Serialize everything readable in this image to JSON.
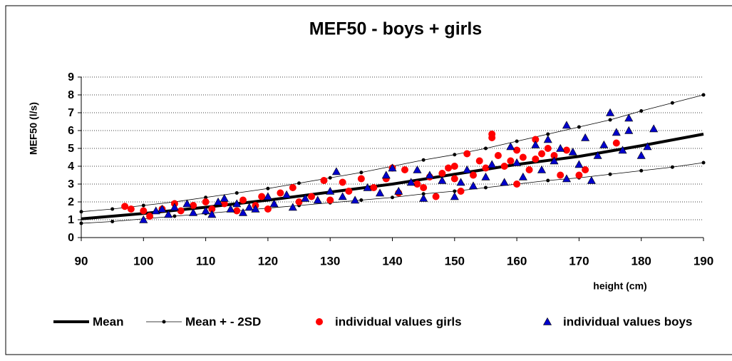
{
  "chart_data": {
    "type": "scatter",
    "title": "MEF50 -  boys + girls",
    "x_label": "height (cm)",
    "y_label": "MEF50 (l/s)",
    "xlim": [
      90,
      190
    ],
    "xticks": [
      90,
      100,
      110,
      120,
      130,
      140,
      150,
      160,
      170,
      180,
      190
    ],
    "ylim": [
      0,
      9
    ],
    "yticks": [
      0,
      1,
      2,
      3,
      4,
      5,
      6,
      7,
      8,
      9
    ],
    "grid": true,
    "series": [
      {
        "name": "Mean",
        "color": "#000000",
        "marker": "line",
        "x": [
          90,
          100,
          110,
          120,
          130,
          140,
          150,
          160,
          170,
          180,
          190
        ],
        "values": [
          1.05,
          1.35,
          1.7,
          2.1,
          2.55,
          3.0,
          3.55,
          4.1,
          4.55,
          5.15,
          5.8
        ]
      },
      {
        "name": "Mean + - 2SD",
        "color": "#000000",
        "marker": "line-dot",
        "x": [
          90,
          95,
          100,
          105,
          110,
          115,
          120,
          125,
          130,
          135,
          140,
          145,
          150,
          155,
          160,
          165,
          170,
          175,
          180,
          185,
          190
        ],
        "values": [
          1.45,
          1.6,
          1.8,
          2.0,
          2.25,
          2.5,
          2.75,
          3.05,
          3.35,
          3.65,
          4.0,
          4.35,
          4.65,
          5.0,
          5.4,
          5.8,
          6.2,
          6.6,
          7.1,
          7.55,
          8.0
        ],
        "lower": [
          0.8,
          0.9,
          1.05,
          1.2,
          1.35,
          1.5,
          1.65,
          1.8,
          1.95,
          2.1,
          2.25,
          2.45,
          2.6,
          2.8,
          3.0,
          3.2,
          3.35,
          3.55,
          3.75,
          3.95,
          4.2
        ]
      },
      {
        "name": "individual values girls",
        "color": "#ff0000",
        "marker": "circle",
        "x": [
          97,
          98,
          100,
          101,
          103,
          105,
          106,
          108,
          110,
          111,
          113,
          115,
          116,
          118,
          119,
          120,
          122,
          124,
          125,
          127,
          129,
          130,
          132,
          133,
          135,
          137,
          139,
          140,
          141,
          142,
          144,
          145,
          146,
          147,
          148,
          149,
          150,
          150,
          151,
          152,
          153,
          154,
          155,
          156,
          156,
          157,
          158,
          159,
          160,
          160,
          161,
          162,
          163,
          163,
          164,
          165,
          166,
          167,
          168,
          170,
          171,
          176
        ],
        "values": [
          1.75,
          1.6,
          1.5,
          1.2,
          1.6,
          1.9,
          1.5,
          1.8,
          2.0,
          1.6,
          1.9,
          1.5,
          2.1,
          1.8,
          2.3,
          1.6,
          2.5,
          2.8,
          2.0,
          2.3,
          3.2,
          2.1,
          3.1,
          2.6,
          3.3,
          2.8,
          3.3,
          3.9,
          2.5,
          3.8,
          3.0,
          2.8,
          3.4,
          2.3,
          3.6,
          3.9,
          4.0,
          3.3,
          2.6,
          4.7,
          3.5,
          4.3,
          3.9,
          5.8,
          5.6,
          4.6,
          4.0,
          4.3,
          3.0,
          4.9,
          4.5,
          3.8,
          5.5,
          4.4,
          4.7,
          5.0,
          4.6,
          3.5,
          4.9,
          3.5,
          3.8,
          5.3
        ]
      },
      {
        "name": "individual values boys",
        "color": "#0000cc",
        "marker": "triangle",
        "x": [
          100,
          102,
          103,
          104,
          105,
          107,
          108,
          110,
          111,
          112,
          113,
          114,
          115,
          116,
          117,
          118,
          120,
          121,
          123,
          124,
          126,
          128,
          130,
          131,
          132,
          134,
          136,
          138,
          139,
          140,
          141,
          143,
          144,
          145,
          146,
          148,
          150,
          151,
          152,
          153,
          155,
          156,
          158,
          159,
          160,
          161,
          163,
          164,
          165,
          166,
          167,
          168,
          168,
          169,
          170,
          171,
          172,
          173,
          174,
          175,
          176,
          177,
          178,
          178,
          180,
          181,
          182
        ],
        "values": [
          1.0,
          1.5,
          1.6,
          1.3,
          1.7,
          1.9,
          1.4,
          1.5,
          1.3,
          2.0,
          2.2,
          1.6,
          1.9,
          1.4,
          1.7,
          1.6,
          2.3,
          1.9,
          2.4,
          1.7,
          2.2,
          2.1,
          2.6,
          3.7,
          2.3,
          2.1,
          2.8,
          2.5,
          3.5,
          3.9,
          2.6,
          3.1,
          3.8,
          2.2,
          3.5,
          3.2,
          2.3,
          3.1,
          3.8,
          2.9,
          3.4,
          4.1,
          3.1,
          5.1,
          4.2,
          3.4,
          5.2,
          3.8,
          5.5,
          4.3,
          5.0,
          6.3,
          3.3,
          4.8,
          4.1,
          5.6,
          3.2,
          4.6,
          5.2,
          7.0,
          5.9,
          4.9,
          6.0,
          6.7,
          4.6,
          5.1,
          6.1
        ]
      }
    ]
  }
}
